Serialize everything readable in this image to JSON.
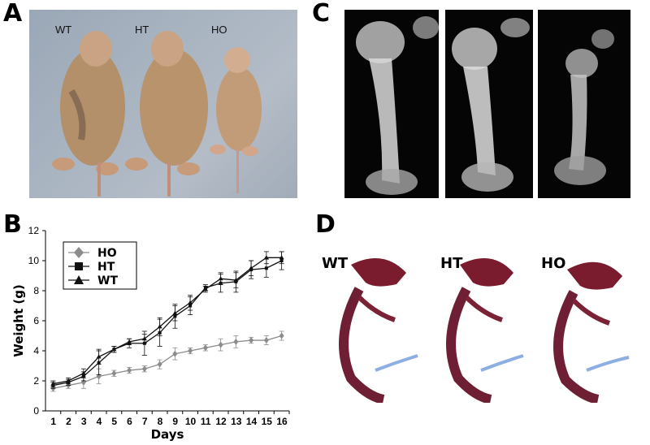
{
  "panels": {
    "a": {
      "letter": "A",
      "labels": [
        "WT",
        "HT",
        "HO"
      ]
    },
    "b": {
      "letter": "B"
    },
    "c": {
      "letter": "C"
    },
    "d": {
      "letter": "D",
      "labels": [
        "WT",
        "HT",
        "HO"
      ]
    }
  },
  "chart_data": {
    "type": "line",
    "xlabel": "Days",
    "ylabel": "Weight (g)",
    "xlim": [
      0,
      16
    ],
    "ylim": [
      0,
      12
    ],
    "xticks": [
      1,
      2,
      3,
      4,
      5,
      6,
      7,
      8,
      9,
      10,
      11,
      12,
      13,
      14,
      15,
      16
    ],
    "yticks": [
      0,
      2,
      4,
      6,
      8,
      10,
      12
    ],
    "grid": false,
    "legend_position": "top-left",
    "series": [
      {
        "name": "HO",
        "marker": "diamond",
        "color": "#8c8c8c",
        "x": [
          0.5,
          1.5,
          2.5,
          3.5,
          4.5,
          5.5,
          6.5,
          7.5,
          8.5,
          9.5,
          10.5,
          11.5,
          12.5,
          13.5,
          14.5,
          15.5
        ],
        "y": [
          1.5,
          1.7,
          1.9,
          2.3,
          2.5,
          2.7,
          2.8,
          3.1,
          3.8,
          4.0,
          4.2,
          4.4,
          4.6,
          4.7,
          4.7,
          5.0
        ],
        "err": [
          0.2,
          0.2,
          0.4,
          0.5,
          0.2,
          0.2,
          0.2,
          0.3,
          0.4,
          0.2,
          0.2,
          0.4,
          0.4,
          0.2,
          0.3,
          0.3
        ]
      },
      {
        "name": "HT",
        "marker": "square",
        "color": "#111111",
        "x": [
          0.5,
          1.5,
          2.5,
          3.5,
          4.5,
          5.5,
          6.5,
          7.5,
          8.5,
          9.5,
          10.5,
          11.5,
          12.5,
          13.5,
          14.5,
          15.5
        ],
        "y": [
          1.7,
          1.9,
          2.3,
          3.2,
          4.1,
          4.5,
          4.5,
          5.2,
          6.3,
          7.0,
          8.2,
          8.5,
          8.6,
          9.4,
          9.5,
          10.0
        ],
        "err": [
          0.2,
          0.2,
          0.3,
          0.8,
          0.2,
          0.3,
          0.8,
          0.9,
          0.8,
          0.6,
          0.2,
          0.6,
          0.7,
          0.6,
          0.6,
          0.6
        ]
      },
      {
        "name": "WT",
        "marker": "triangle",
        "color": "#111111",
        "x": [
          0.5,
          1.5,
          2.5,
          3.5,
          4.5,
          5.5,
          6.5,
          7.5,
          8.5,
          9.5,
          10.5,
          11.5,
          12.5,
          13.5,
          14.5,
          15.5
        ],
        "y": [
          1.8,
          2.0,
          2.5,
          3.6,
          4.1,
          4.6,
          4.8,
          5.6,
          6.5,
          7.2,
          8.1,
          8.8,
          8.7,
          9.5,
          10.2,
          10.2
        ],
        "err": [
          0.2,
          0.2,
          0.3,
          0.5,
          0.2,
          0.2,
          0.3,
          0.6,
          0.5,
          0.5,
          0.2,
          0.4,
          0.5,
          0.5,
          0.4,
          0.4
        ]
      }
    ]
  }
}
